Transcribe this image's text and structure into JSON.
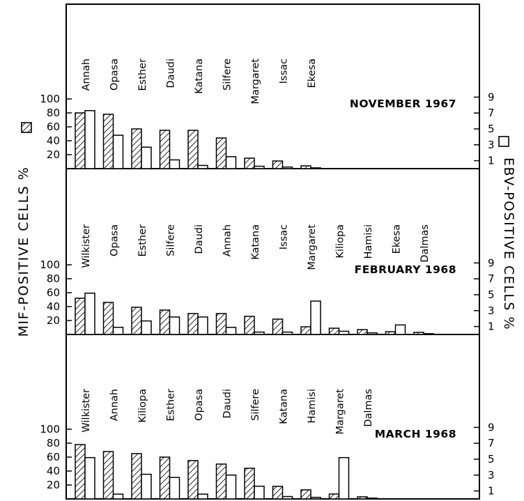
{
  "chart_data": {
    "type": "bar",
    "left_axis_label": "MIF-POSITIVE CELLS %",
    "right_axis_label": "EBV-POSITIVE CELLS %",
    "left_ticks": [
      20,
      40,
      60,
      80,
      100
    ],
    "right_ticks": [
      1,
      3,
      5,
      7,
      9
    ],
    "left_range": [
      0,
      130
    ],
    "right_range": [
      0,
      11.4
    ],
    "panels": [
      {
        "title": "NOVEMBER 1967",
        "categories": [
          "Annah",
          "Opasa",
          "Esther",
          "Daudi",
          "Katana",
          "Silfere",
          "Margaret",
          "Issac",
          "Ekesa"
        ],
        "series": [
          {
            "values": [
              80,
              78,
              57,
              55,
              55,
              44,
              15,
              11,
              4
            ]
          },
          {
            "values": [
              7.3,
              4.2,
              2.7,
              1.1,
              0.4,
              1.5,
              0.3,
              0.2,
              0.1
            ]
          }
        ]
      },
      {
        "title": "FEBRUARY 1968",
        "categories": [
          "Wilkister",
          "Opasa",
          "Esther",
          "Silfere",
          "Daudi",
          "Annah",
          "Katana",
          "Issac",
          "Margaret",
          "Kiliopa",
          "Hamisi",
          "Ekesa",
          "Dalmas"
        ],
        "series": [
          {
            "values": [
              52,
              46,
              39,
              35,
              30,
              30,
              26,
              22,
              11,
              9,
              7,
              4,
              3
            ]
          },
          {
            "values": [
              5.2,
              0.9,
              1.7,
              2.2,
              2.2,
              0.9,
              0.3,
              0.3,
              4.2,
              0.4,
              0.2,
              1.2,
              0.1
            ]
          }
        ]
      },
      {
        "title": "MARCH 1968",
        "categories": [
          "Wilkister",
          "Annah",
          "Kiliopa",
          "Esther",
          "Opasa",
          "Daudi",
          "Silfere",
          "Katana",
          "Hamisi",
          "Margaret",
          "Dalmas"
        ],
        "series": [
          {
            "values": [
              78,
              68,
              65,
              60,
              55,
              50,
              44,
              18,
              13,
              7,
              3
            ]
          },
          {
            "values": [
              5.2,
              0.6,
              3.1,
              2.7,
              0.6,
              3.0,
              1.6,
              0.3,
              0.2,
              5.2,
              0.1
            ]
          }
        ]
      }
    ]
  }
}
